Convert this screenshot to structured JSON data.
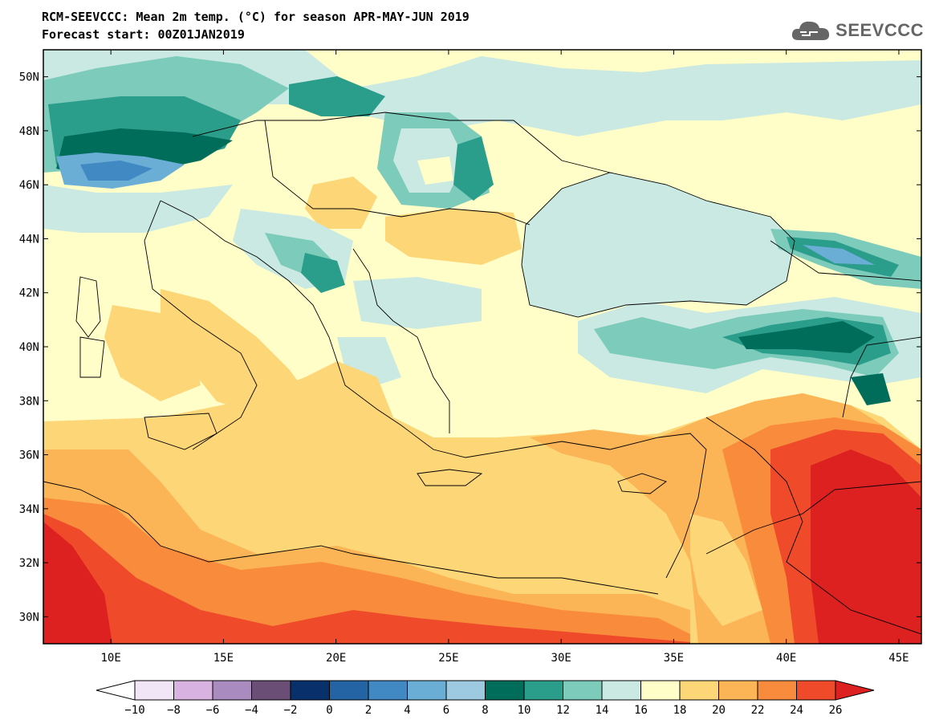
{
  "header": {
    "title_line1": "RCM-SEEVCCC: Mean 2m temp. (°C) for season APR-MAY-JUN 2019",
    "title_line2": "Forecast start: 00Z01JAN2019",
    "logo_text": "SEEVCCC"
  },
  "map": {
    "variable": "Mean 2m temp. (°C)",
    "extent": {
      "lon": [
        7,
        46
      ],
      "lat": [
        29,
        51
      ]
    },
    "lat_ticks": [
      "50N",
      "48N",
      "46N",
      "44N",
      "42N",
      "40N",
      "38N",
      "36N",
      "34N",
      "32N",
      "30N"
    ],
    "lat_values": [
      50,
      48,
      46,
      44,
      42,
      40,
      38,
      36,
      34,
      32,
      30
    ],
    "lon_ticks": [
      "10E",
      "15E",
      "20E",
      "25E",
      "30E",
      "35E",
      "40E",
      "45E"
    ],
    "lon_values": [
      10,
      15,
      20,
      25,
      30,
      35,
      40,
      45
    ]
  },
  "colorbar": {
    "labels": [
      "-10",
      "-8",
      "-6",
      "-4",
      "-2",
      "0",
      "2",
      "4",
      "6",
      "8",
      "10",
      "12",
      "14",
      "16",
      "18",
      "20",
      "22",
      "24",
      "26"
    ],
    "colors": [
      "#f0e6f5",
      "#d8b3e2",
      "#a98bc0",
      "#6a4e76",
      "#08306b",
      "#2464a4",
      "#4089c2",
      "#6aaed6",
      "#9ecae1",
      "#006d5b",
      "#2b9d8b",
      "#7ccbbb",
      "#c9e9e2",
      "#fffdc8",
      "#fdd677",
      "#fbb556",
      "#f98b3c",
      "#ef4a2a"
    ],
    "under_color": "#ffffff",
    "over_color": "#dd2020"
  }
}
